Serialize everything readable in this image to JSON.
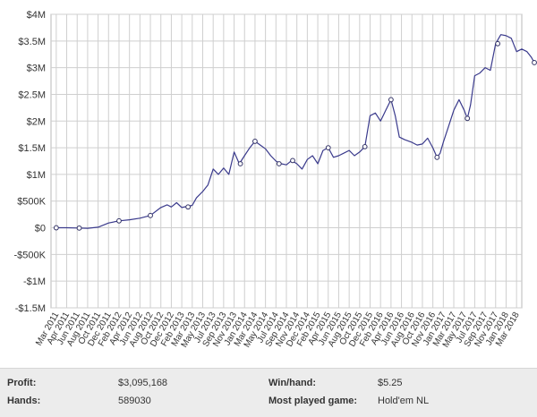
{
  "chart_data": {
    "type": "line",
    "ylim": [
      -1500000,
      4000000
    ],
    "y_ticks": [
      {
        "value": 4000000,
        "label": "$4M"
      },
      {
        "value": 3500000,
        "label": "$3.5M"
      },
      {
        "value": 3000000,
        "label": "$3M"
      },
      {
        "value": 2500000,
        "label": "$2.5M"
      },
      {
        "value": 2000000,
        "label": "$2M"
      },
      {
        "value": 1500000,
        "label": "$1.5M"
      },
      {
        "value": 1000000,
        "label": "$1M"
      },
      {
        "value": 500000,
        "label": "$500K"
      },
      {
        "value": 0,
        "label": "$0"
      },
      {
        "value": -500000,
        "label": "-$500K"
      },
      {
        "value": -1000000,
        "label": "-$1M"
      },
      {
        "value": -1500000,
        "label": "-$1.5M"
      }
    ],
    "x_ticks": [
      "Mar 2011",
      "Apr 2011",
      "Jun 2011",
      "Aug 2011",
      "Oct 2011",
      "Dec 2011",
      "Feb 2012",
      "Apr 2012",
      "Jun 2012",
      "Aug 2012",
      "Oct 2012",
      "Dec 2012",
      "Feb 2013",
      "Mar 2013",
      "May 2013",
      "Jul 2013",
      "Sep 2013",
      "Nov 2013",
      "Jan 2014",
      "Mar 2014",
      "May 2014",
      "Jul 2014",
      "Sep 2014",
      "Nov 2014",
      "Dec 2014",
      "Feb 2015",
      "Apr 2015",
      "Jun 2015",
      "Aug 2015",
      "Oct 2015",
      "Dec 2015",
      "Feb 2016",
      "Apr 2016",
      "Jun 2016",
      "Aug 2016",
      "Oct 2016",
      "Nov 2016",
      "Jan 2017",
      "Mar 2017",
      "May 2017",
      "Jul 2017",
      "Sep 2017",
      "Nov 2017",
      "Jan 2018",
      "Mar 2018"
    ],
    "series": [
      {
        "color": "#3a3a8c",
        "points": [
          [
            0,
            0
          ],
          [
            1,
            0
          ],
          [
            2,
            -5000
          ],
          [
            3,
            -10000
          ],
          [
            4,
            10000
          ],
          [
            5,
            90000
          ],
          [
            6,
            130000
          ],
          [
            7,
            150000
          ],
          [
            8,
            180000
          ],
          [
            9,
            230000
          ],
          [
            10,
            380000
          ],
          [
            10.6,
            430000
          ],
          [
            11,
            390000
          ],
          [
            11.5,
            470000
          ],
          [
            12,
            380000
          ],
          [
            13,
            420000
          ],
          [
            13.4,
            560000
          ],
          [
            14,
            680000
          ],
          [
            14.5,
            800000
          ],
          [
            15,
            1100000
          ],
          [
            15.5,
            1000000
          ],
          [
            16,
            1120000
          ],
          [
            16.5,
            1000000
          ],
          [
            17,
            1420000
          ],
          [
            17.5,
            1200000
          ],
          [
            18,
            1350000
          ],
          [
            18.5,
            1500000
          ],
          [
            19,
            1620000
          ],
          [
            19.5,
            1550000
          ],
          [
            20,
            1480000
          ],
          [
            20.5,
            1350000
          ],
          [
            21,
            1250000
          ],
          [
            21.5,
            1200000
          ],
          [
            22,
            1180000
          ],
          [
            22.5,
            1260000
          ],
          [
            23,
            1200000
          ],
          [
            23.5,
            1100000
          ],
          [
            24,
            1280000
          ],
          [
            24.5,
            1350000
          ],
          [
            25,
            1200000
          ],
          [
            25.5,
            1450000
          ],
          [
            26,
            1500000
          ],
          [
            26.5,
            1320000
          ],
          [
            27,
            1350000
          ],
          [
            27.5,
            1400000
          ],
          [
            28,
            1450000
          ],
          [
            28.5,
            1350000
          ],
          [
            29,
            1420000
          ],
          [
            29.5,
            1520000
          ],
          [
            30,
            2100000
          ],
          [
            30.5,
            2150000
          ],
          [
            31,
            2000000
          ],
          [
            31.5,
            2200000
          ],
          [
            32,
            2400000
          ],
          [
            32.4,
            2100000
          ],
          [
            32.8,
            1700000
          ],
          [
            33.3,
            1650000
          ],
          [
            34,
            1600000
          ],
          [
            34.5,
            1550000
          ],
          [
            35,
            1570000
          ],
          [
            35.5,
            1680000
          ],
          [
            36,
            1500000
          ],
          [
            36.4,
            1320000
          ],
          [
            36.7,
            1400000
          ],
          [
            37,
            1600000
          ],
          [
            37.5,
            1900000
          ],
          [
            38,
            2200000
          ],
          [
            38.5,
            2400000
          ],
          [
            39,
            2200000
          ],
          [
            39.3,
            2050000
          ],
          [
            39.6,
            2300000
          ],
          [
            40,
            2850000
          ],
          [
            40.5,
            2900000
          ],
          [
            41,
            3000000
          ],
          [
            41.5,
            2950000
          ],
          [
            42,
            3450000
          ],
          [
            42.5,
            3620000
          ],
          [
            43,
            3600000
          ],
          [
            43.5,
            3550000
          ],
          [
            44,
            3300000
          ],
          [
            44.5,
            3350000
          ],
          [
            45,
            3300000
          ],
          [
            45.4,
            3200000
          ],
          [
            45.7,
            3095168
          ]
        ],
        "markers": [
          [
            0,
            0
          ],
          [
            2.2,
            -5000
          ],
          [
            6,
            130000
          ],
          [
            9,
            230000
          ],
          [
            12.6,
            390000
          ],
          [
            17.6,
            1200000
          ],
          [
            19,
            1620000
          ],
          [
            21.3,
            1200000
          ],
          [
            22.6,
            1260000
          ],
          [
            26,
            1500000
          ],
          [
            29.5,
            1520000
          ],
          [
            32,
            2400000
          ],
          [
            36.4,
            1320000
          ],
          [
            39.3,
            2050000
          ],
          [
            42.2,
            3450000
          ],
          [
            45.7,
            3095168
          ]
        ]
      }
    ]
  },
  "stats": {
    "profit_label": "Profit:",
    "profit_value": "$3,095,168",
    "hands_label": "Hands:",
    "hands_value": "589030",
    "winhand_label": "Win/hand:",
    "winhand_value": "$5.25",
    "most_played_label": "Most played game:",
    "most_played_value": "Hold'em NL"
  }
}
